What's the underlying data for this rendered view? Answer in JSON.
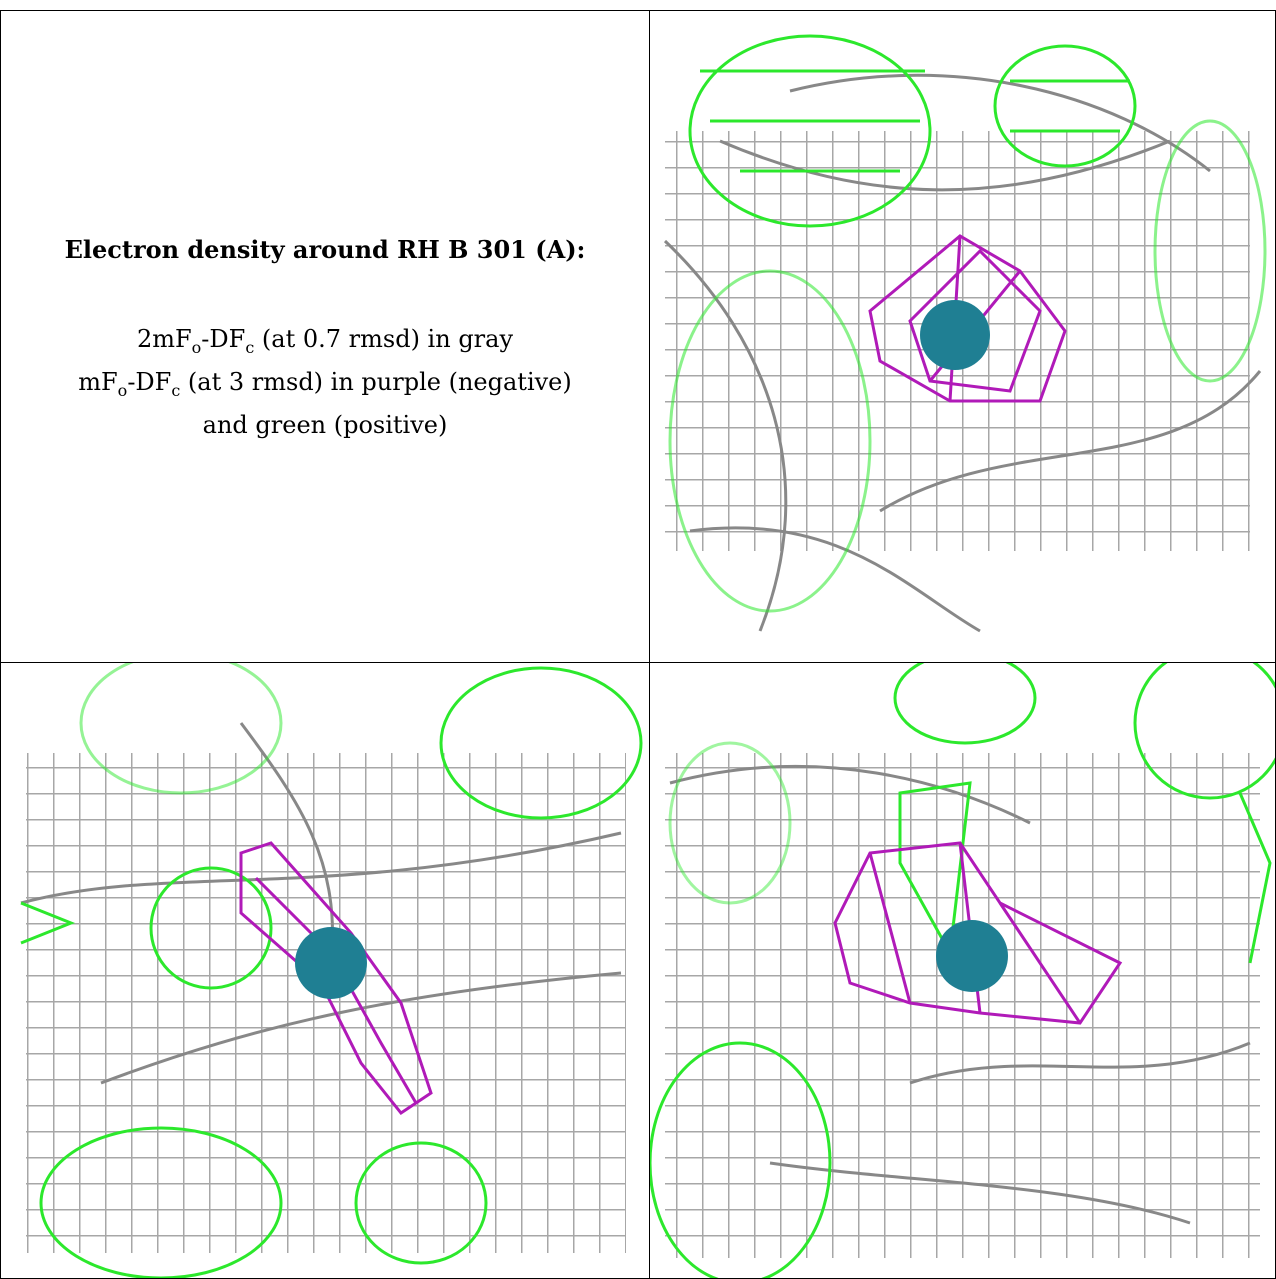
{
  "legend": {
    "title": "Electron density around RH B 301 (A):",
    "line1_a": "2mF",
    "line1_sub1": "o",
    "line1_b": "-DF",
    "line1_sub2": "c",
    "line1_c": " (at 0.7 rmsd) in gray",
    "line2_a": "mF",
    "line2_sub1": "o",
    "line2_b": "-DF",
    "line2_sub2": "c",
    "line2_c": " (at 3 rmsd) in purple (negative)",
    "line3": "and green (positive)"
  },
  "colors": {
    "gray_map": "#9a9a9a",
    "purple_map": "#b01ab8",
    "green_map": "#22e622",
    "atom": "#1f7f93"
  },
  "panels": [
    {
      "name": "view-top-right"
    },
    {
      "name": "view-bottom-left"
    },
    {
      "name": "view-bottom-right"
    }
  ]
}
